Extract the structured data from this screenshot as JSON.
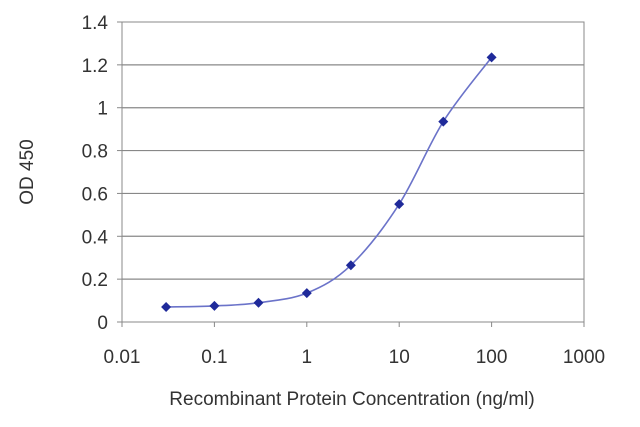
{
  "chart_data": {
    "type": "scatter",
    "title": "",
    "xlabel": "Recombinant Protein Concentration (ng/ml)",
    "ylabel": "OD 450",
    "x_scale": "log",
    "xlim": [
      0.01,
      1000
    ],
    "ylim": [
      0,
      1.4
    ],
    "x_ticks": [
      "0.01",
      "0.1",
      "1",
      "10",
      "100",
      "1000"
    ],
    "y_ticks": [
      "0",
      "0.2",
      "0.4",
      "0.6",
      "0.8",
      "1",
      "1.2",
      "1.4"
    ],
    "grid": "horizontal",
    "series": [
      {
        "x": [
          0.03,
          0.1,
          0.3,
          1,
          3,
          10,
          30,
          100
        ],
        "y": [
          0.07,
          0.075,
          0.09,
          0.135,
          0.265,
          0.55,
          0.935,
          1.235
        ],
        "color": "#1f2a9a",
        "line_color": "#6b73c9",
        "marker": "diamond",
        "fit": "smooth"
      }
    ]
  }
}
